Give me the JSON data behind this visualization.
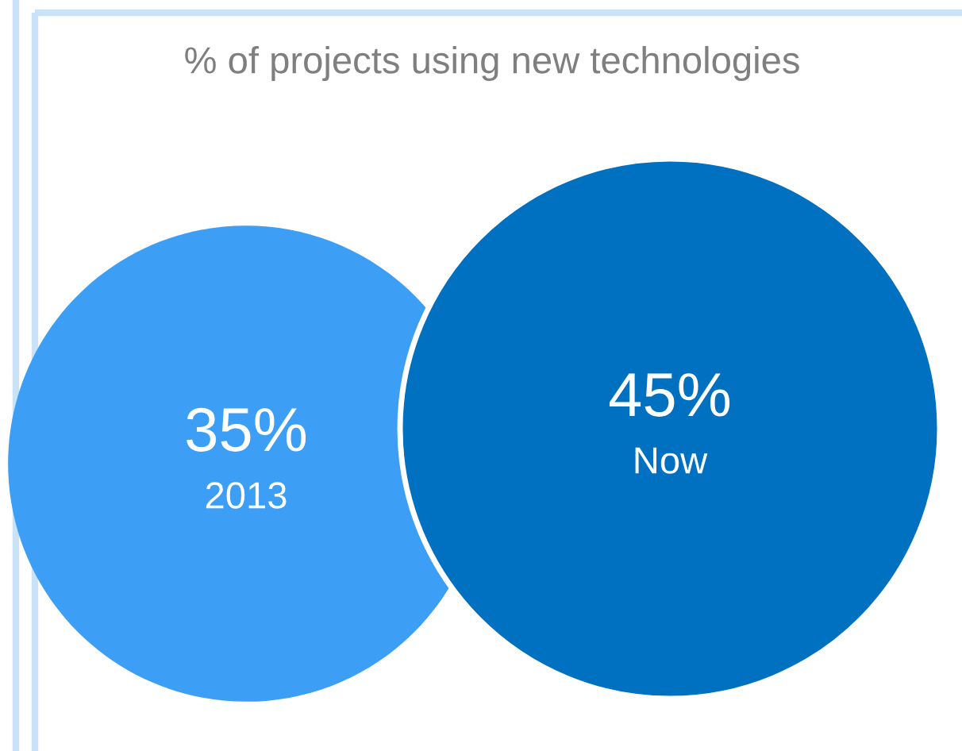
{
  "chart_data": {
    "type": "other",
    "title": "% of projects using new technologies",
    "categories": [
      "2013",
      "Now"
    ],
    "values": [
      35,
      45
    ],
    "value_labels": [
      "35%",
      "45%"
    ],
    "colors": [
      "#3d9ef5",
      "#0070c0"
    ]
  }
}
